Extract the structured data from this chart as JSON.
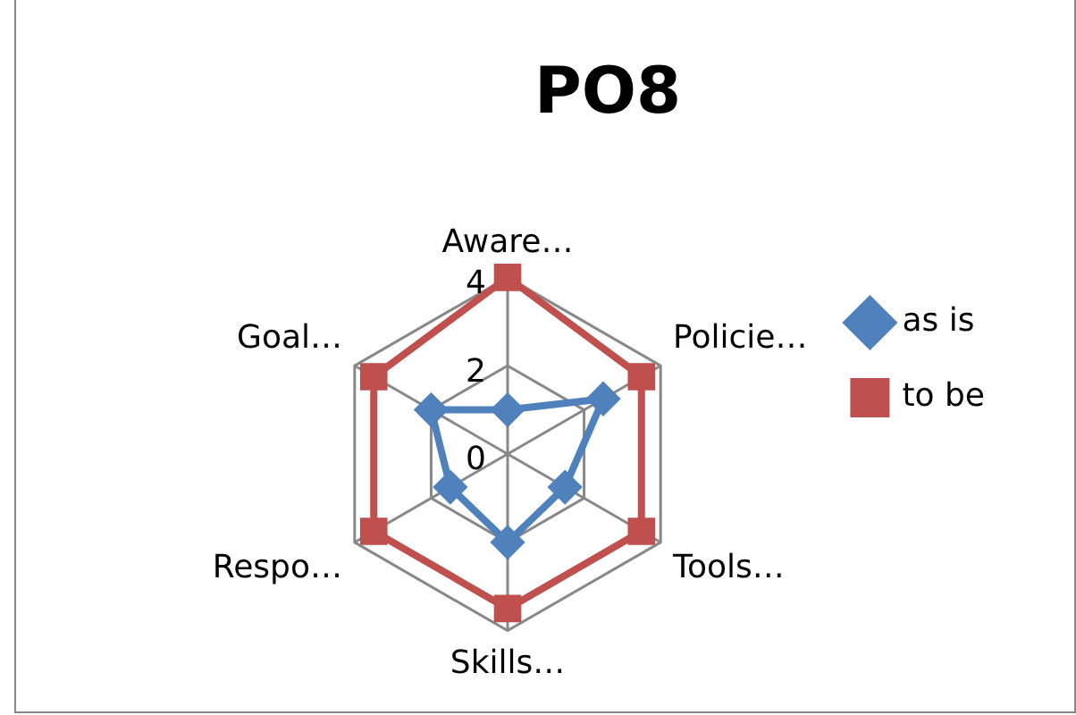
{
  "chart_data": {
    "type": "radar",
    "title": "PO8",
    "categories": [
      "Aware…",
      "Policie…",
      "Tools…",
      "Skills…",
      "Respo…",
      "Goal…"
    ],
    "series": [
      {
        "name": "as is",
        "color": "#4f81bd",
        "marker": "diamond",
        "values": [
          1,
          2.5,
          1.5,
          2,
          1.5,
          2
        ]
      },
      {
        "name": "to be",
        "color": "#c0504d",
        "marker": "square",
        "values": [
          4,
          3.5,
          3.5,
          3.5,
          3.5,
          3.5
        ]
      }
    ],
    "ylim": [
      0,
      4
    ],
    "yticks": [
      0,
      2,
      4
    ],
    "grid": true,
    "legend": "right"
  }
}
